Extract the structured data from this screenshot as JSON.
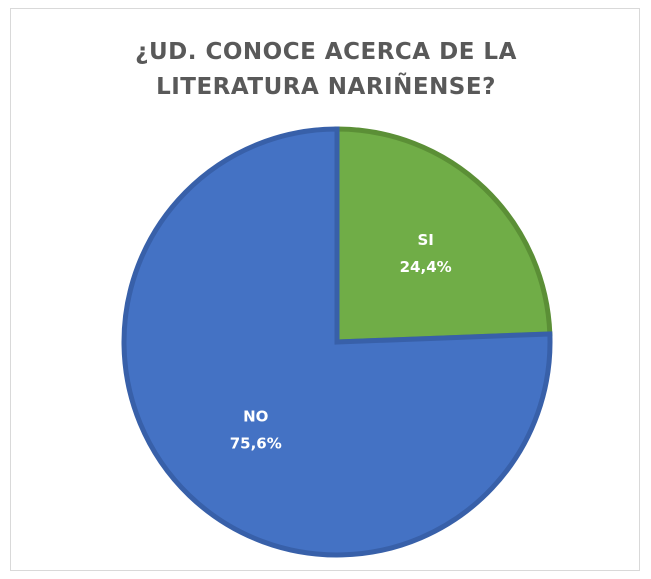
{
  "chart_data": {
    "type": "pie",
    "title_lines": [
      "¿UD. CONOCE ACERCA DE LA",
      "LITERATURA NARIÑENSE?"
    ],
    "slices": [
      {
        "label": "SI",
        "value": 24.4,
        "display": "24,4%",
        "color": "#70ad47",
        "border": "#5b8f36"
      },
      {
        "label": "NO",
        "value": 75.6,
        "display": "75,6%",
        "color": "#4472c4",
        "border": "#3860a9"
      }
    ],
    "start_angle_deg": 0,
    "direction": "clockwise",
    "legend": "none"
  }
}
